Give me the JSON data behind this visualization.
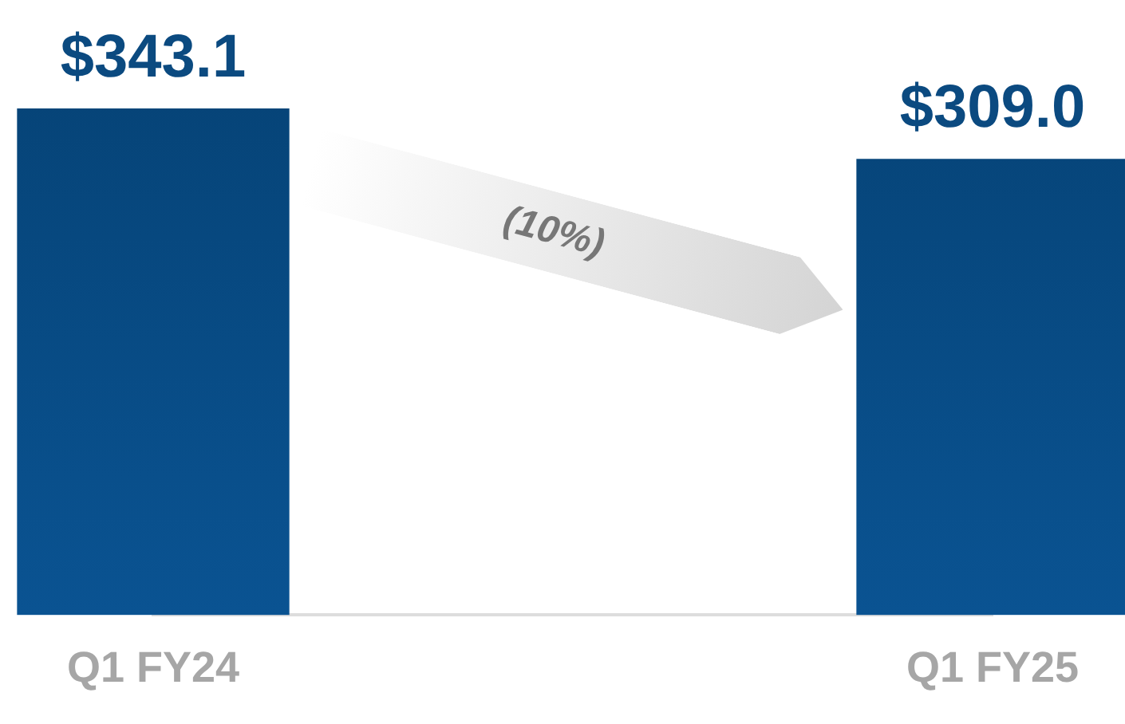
{
  "chart_data": {
    "type": "bar",
    "categories": [
      "Q1 FY24",
      "Q1 FY25"
    ],
    "series": [
      {
        "color": "#0a5392",
        "values": [
          343.1,
          309.0
        ],
        "value_labels": [
          "$343.1",
          "$309.0"
        ]
      }
    ],
    "tick_labels": "x",
    "grid": false,
    "legend": false,
    "annotations": [
      "(10%)"
    ]
  }
}
